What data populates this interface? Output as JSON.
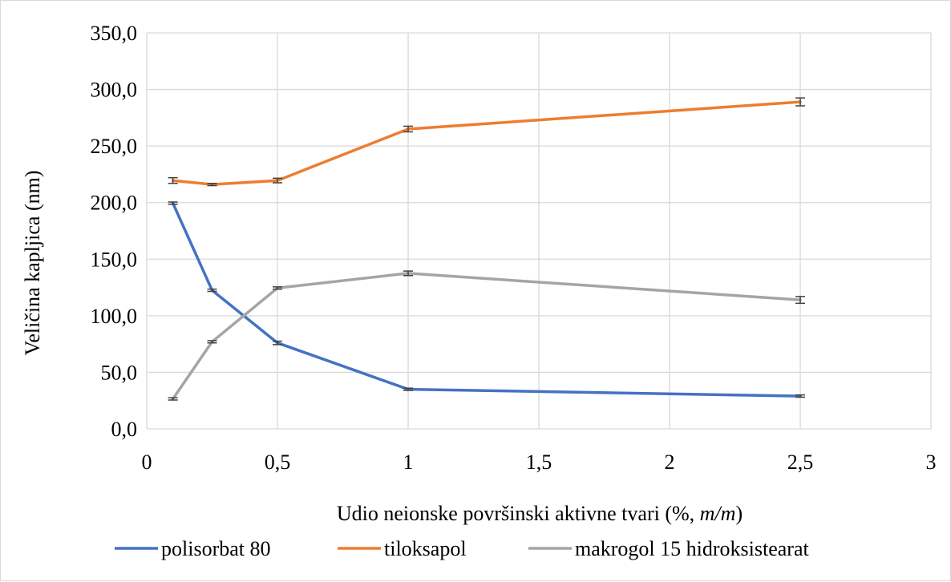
{
  "chart_data": {
    "type": "line",
    "title": "",
    "xlabel": "Udio neionske površinski aktivne tvari (%, ",
    "xlabel_italic": "m/m",
    "xlabel_suffix": ")",
    "ylabel": "Veličina kapljica (nm)",
    "xlim": [
      0,
      3
    ],
    "ylim": [
      0,
      350
    ],
    "x_ticks": [
      {
        "value": 0,
        "label": "0"
      },
      {
        "value": 0.5,
        "label": "0,5"
      },
      {
        "value": 1,
        "label": "1"
      },
      {
        "value": 1.5,
        "label": "1,5"
      },
      {
        "value": 2,
        "label": "2"
      },
      {
        "value": 2.5,
        "label": "2,5"
      },
      {
        "value": 3,
        "label": "3"
      }
    ],
    "y_ticks": [
      {
        "value": 0,
        "label": "0,0"
      },
      {
        "value": 50,
        "label": "50,0"
      },
      {
        "value": 100,
        "label": "100,0"
      },
      {
        "value": 150,
        "label": "150,0"
      },
      {
        "value": 200,
        "label": "200,0"
      },
      {
        "value": 250,
        "label": "250,0"
      },
      {
        "value": 300,
        "label": "300,0"
      },
      {
        "value": 350,
        "label": "350,0"
      }
    ],
    "grid": true,
    "legend_position": "bottom",
    "series": [
      {
        "name": "polisorbat 80",
        "color": "#4472c4",
        "x": [
          0.1,
          0.25,
          0.5,
          1,
          2.5
        ],
        "y": [
          199.5,
          122.5,
          76,
          35,
          29
        ],
        "err": [
          1,
          1,
          1.5,
          1,
          1
        ]
      },
      {
        "name": "tiloksapol",
        "color": "#ed7d31",
        "x": [
          0.1,
          0.25,
          0.5,
          1,
          2.5
        ],
        "y": [
          219.5,
          216,
          219.5,
          265,
          289
        ],
        "err": [
          2.5,
          1,
          2,
          2.5,
          3.5
        ]
      },
      {
        "name": "makrogol 15 hidroksistearat",
        "color": "#a5a5a5",
        "x": [
          0.1,
          0.25,
          0.5,
          1,
          2.5
        ],
        "y": [
          26.5,
          77,
          124.5,
          137.5,
          114
        ],
        "err": [
          1,
          1,
          1,
          2,
          3
        ]
      }
    ]
  }
}
